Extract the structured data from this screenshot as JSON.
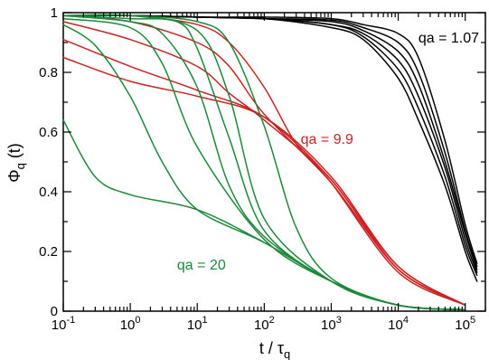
{
  "chart_data": {
    "type": "line",
    "xlabel": "t / τ",
    "xlabel_sub": "q",
    "ylabel": "Φ",
    "ylabel_sub": "q",
    "ylabel_suffix": " (t)",
    "xscale": "log",
    "xlim": [
      0.1,
      200000
    ],
    "ylim": [
      0,
      1
    ],
    "grid": false,
    "x_tick_labels": [
      {
        "base": "10",
        "exp": "-1",
        "value": 0.1
      },
      {
        "base": "10",
        "exp": "0",
        "value": 1
      },
      {
        "base": "10",
        "exp": "1",
        "value": 10
      },
      {
        "base": "10",
        "exp": "2",
        "value": 100
      },
      {
        "base": "10",
        "exp": "3",
        "value": 1000
      },
      {
        "base": "10",
        "exp": "4",
        "value": 10000
      },
      {
        "base": "10",
        "exp": "5",
        "value": 100000
      }
    ],
    "y_ticks": [
      0,
      0.2,
      0.4,
      0.6,
      0.8,
      1
    ],
    "y_tick_labels": [
      "0",
      "0.2",
      "0.4",
      "0.6",
      "0.8",
      "1"
    ],
    "annotations": [
      {
        "text": "qa = 1.07",
        "color": "#000000",
        "x": 20000,
        "y": 0.9
      },
      {
        "text": "qa = 9.9",
        "color": "#cc2222",
        "x": 350,
        "y": 0.56
      },
      {
        "text": "qa = 20",
        "color": "#1a8a3a",
        "x": 5,
        "y": 0.14
      }
    ],
    "series": [
      {
        "group": "qa = 1.07",
        "color": "#000000",
        "x": [
          0.1,
          1,
          10,
          100,
          1000,
          3000,
          10000,
          20000,
          50000,
          100000,
          150000
        ],
        "y": [
          0.99,
          0.99,
          0.985,
          0.98,
          0.95,
          0.91,
          0.78,
          0.64,
          0.42,
          0.2,
          0.1
        ]
      },
      {
        "group": "qa = 1.07",
        "color": "#000000",
        "x": [
          0.1,
          1,
          10,
          100,
          1000,
          3000,
          10000,
          20000,
          50000,
          100000,
          150000
        ],
        "y": [
          0.99,
          0.99,
          0.985,
          0.98,
          0.96,
          0.92,
          0.81,
          0.68,
          0.45,
          0.22,
          0.12
        ]
      },
      {
        "group": "qa = 1.07",
        "color": "#000000",
        "x": [
          0.1,
          1,
          10,
          100,
          1000,
          3000,
          10000,
          20000,
          50000,
          100000,
          150000
        ],
        "y": [
          0.99,
          0.99,
          0.985,
          0.98,
          0.96,
          0.93,
          0.84,
          0.72,
          0.48,
          0.24,
          0.13
        ]
      },
      {
        "group": "qa = 1.07",
        "color": "#000000",
        "x": [
          0.1,
          1,
          10,
          100,
          1000,
          3000,
          10000,
          20000,
          50000,
          100000,
          150000
        ],
        "y": [
          0.99,
          0.99,
          0.985,
          0.98,
          0.97,
          0.94,
          0.87,
          0.76,
          0.5,
          0.26,
          0.14
        ]
      },
      {
        "group": "qa = 1.07",
        "color": "#000000",
        "x": [
          0.1,
          1,
          10,
          100,
          1000,
          3000,
          10000,
          20000,
          50000,
          100000,
          150000
        ],
        "y": [
          0.99,
          0.99,
          0.985,
          0.98,
          0.975,
          0.95,
          0.9,
          0.8,
          0.53,
          0.27,
          0.15
        ]
      },
      {
        "group": "qa = 1.07",
        "color": "#000000",
        "x": [
          0.1,
          1,
          10,
          100,
          1000,
          3000,
          10000,
          20000,
          50000,
          100000,
          150000
        ],
        "y": [
          0.99,
          0.99,
          0.985,
          0.985,
          0.98,
          0.96,
          0.93,
          0.85,
          0.57,
          0.29,
          0.16
        ]
      },
      {
        "group": "qa = 9.9",
        "color": "#cc2222",
        "x": [
          0.1,
          1,
          10,
          100,
          1000,
          10000,
          100000
        ],
        "y": [
          0.85,
          0.77,
          0.72,
          0.65,
          0.45,
          0.15,
          0.02
        ]
      },
      {
        "group": "qa = 9.9",
        "color": "#cc2222",
        "x": [
          0.1,
          1,
          10,
          100,
          1000,
          10000,
          100000
        ],
        "y": [
          0.91,
          0.82,
          0.74,
          0.65,
          0.44,
          0.15,
          0.02
        ]
      },
      {
        "group": "qa = 9.9",
        "color": "#cc2222",
        "x": [
          0.1,
          1,
          10,
          30,
          100,
          1000,
          10000,
          100000
        ],
        "y": [
          0.97,
          0.91,
          0.82,
          0.73,
          0.64,
          0.44,
          0.14,
          0.02
        ]
      },
      {
        "group": "qa = 9.9",
        "color": "#cc2222",
        "x": [
          0.1,
          1,
          10,
          30,
          100,
          1000,
          10000,
          100000
        ],
        "y": [
          0.99,
          0.97,
          0.9,
          0.82,
          0.66,
          0.43,
          0.14,
          0.02
        ]
      },
      {
        "group": "qa = 9.9",
        "color": "#cc2222",
        "x": [
          0.1,
          1,
          10,
          30,
          100,
          300,
          1000,
          10000,
          100000
        ],
        "y": [
          0.99,
          0.99,
          0.96,
          0.9,
          0.75,
          0.56,
          0.43,
          0.13,
          0.02
        ]
      },
      {
        "group": "qa = 20",
        "color": "#1a8a3a",
        "x": [
          0.1,
          0.3,
          1,
          10,
          100,
          1000,
          10000,
          100000
        ],
        "y": [
          0.64,
          0.45,
          0.39,
          0.34,
          0.23,
          0.1,
          0.02,
          0.005
        ]
      },
      {
        "group": "qa = 20",
        "color": "#1a8a3a",
        "x": [
          0.1,
          0.3,
          1,
          3,
          10,
          100,
          1000,
          10000,
          100000
        ],
        "y": [
          0.96,
          0.89,
          0.72,
          0.5,
          0.34,
          0.23,
          0.1,
          0.02,
          0.005
        ]
      },
      {
        "group": "qa = 20",
        "color": "#1a8a3a",
        "x": [
          0.1,
          1,
          3,
          10,
          100,
          1000,
          10000,
          100000
        ],
        "y": [
          0.98,
          0.95,
          0.83,
          0.55,
          0.24,
          0.1,
          0.02,
          0.005
        ]
      },
      {
        "group": "qa = 20",
        "color": "#1a8a3a",
        "x": [
          0.1,
          1,
          3,
          10,
          30,
          100,
          1000,
          10000,
          100000
        ],
        "y": [
          0.99,
          0.97,
          0.93,
          0.75,
          0.42,
          0.25,
          0.1,
          0.02,
          0.005
        ]
      },
      {
        "group": "qa = 20",
        "color": "#1a8a3a",
        "x": [
          0.1,
          1,
          5,
          10,
          30,
          100,
          1000,
          10000,
          100000
        ],
        "y": [
          0.99,
          0.98,
          0.97,
          0.88,
          0.58,
          0.27,
          0.1,
          0.02,
          0.005
        ]
      },
      {
        "group": "qa = 20",
        "color": "#1a8a3a",
        "x": [
          0.1,
          1,
          10,
          30,
          100,
          1000,
          10000,
          100000
        ],
        "y": [
          0.99,
          0.99,
          0.94,
          0.72,
          0.31,
          0.1,
          0.02,
          0.005
        ]
      },
      {
        "group": "qa = 20",
        "color": "#1a8a3a",
        "x": [
          0.1,
          1,
          10,
          30,
          100,
          300,
          1000,
          10000,
          100000
        ],
        "y": [
          0.99,
          0.99,
          0.97,
          0.9,
          0.62,
          0.28,
          0.11,
          0.02,
          0.005
        ]
      }
    ]
  }
}
